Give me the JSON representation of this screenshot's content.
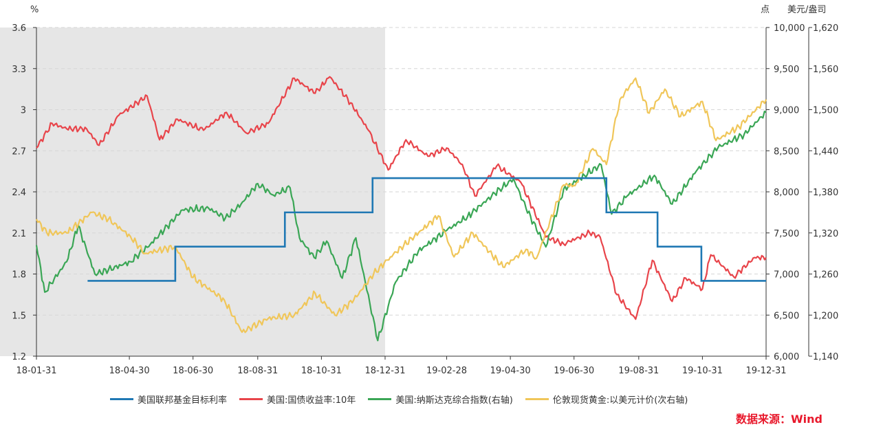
{
  "chart_data": {
    "type": "line",
    "left_axis_unit": "%",
    "right_axis_unit": "点",
    "right2_axis_unit": "美元/盎司",
    "left_axis": {
      "min": 1.2,
      "max": 3.6,
      "ticks": [
        1.2,
        1.5,
        1.8,
        2.1,
        2.4,
        2.7,
        3.0,
        3.3,
        3.6
      ],
      "tick_labels": [
        "1.2",
        "1.5",
        "1.8",
        "2.1",
        "2.4",
        "2.7",
        "3",
        "3.3",
        "3.6"
      ]
    },
    "right_axis": {
      "min": 6000,
      "max": 10000,
      "tick_labels": [
        "6,000",
        "6,500",
        "7,000",
        "7,500",
        "8,000",
        "8,500",
        "9,000",
        "9,500",
        "10,000"
      ]
    },
    "right2_axis": {
      "min": 1140,
      "max": 1620,
      "tick_labels": [
        "1,140",
        "1,200",
        "1,260",
        "1,320",
        "1,380",
        "1,440",
        "1,500",
        "1,560",
        "1,620"
      ]
    },
    "x_start": "2018-01-31",
    "x_end": "2019-12-31",
    "x_tick_dates": [
      "2018-01-31",
      "2018-04-30",
      "2018-06-30",
      "2018-08-31",
      "2018-10-31",
      "2018-12-31",
      "2019-02-28",
      "2019-04-30",
      "2019-06-30",
      "2019-08-31",
      "2019-10-31",
      "2019-12-31"
    ],
    "x_tick_labels": [
      "18-01-31",
      "18-04-30",
      "18-06-30",
      "18-08-31",
      "18-10-31",
      "18-12-31",
      "19-02-28",
      "19-04-30",
      "19-06-30",
      "19-08-31",
      "19-10-31",
      "19-12-31"
    ],
    "shaded_period": [
      "2018-01-31",
      "2018-12-31"
    ],
    "grid": true,
    "legend_position": "bottom",
    "series": [
      {
        "name": "美国联邦基金目标利率",
        "axis": "left",
        "color": "#1f78b4",
        "step": true,
        "points": [
          [
            "2018-03-21",
            1.75
          ],
          [
            "2018-06-13",
            2.0
          ],
          [
            "2018-09-26",
            2.25
          ],
          [
            "2018-12-19",
            2.5
          ],
          [
            "2019-07-31",
            2.25
          ],
          [
            "2019-09-18",
            2.0
          ],
          [
            "2019-10-30",
            1.75
          ],
          [
            "2019-12-31",
            1.75
          ]
        ]
      },
      {
        "name": "美国:国债收益率:10年",
        "axis": "left",
        "color": "#e8444a",
        "points": [
          [
            "2018-01-31",
            2.72
          ],
          [
            "2018-02-15",
            2.9
          ],
          [
            "2018-03-01",
            2.86
          ],
          [
            "2018-03-20",
            2.86
          ],
          [
            "2018-04-01",
            2.74
          ],
          [
            "2018-04-20",
            2.96
          ],
          [
            "2018-05-17",
            3.1
          ],
          [
            "2018-05-29",
            2.78
          ],
          [
            "2018-06-15",
            2.93
          ],
          [
            "2018-07-10",
            2.85
          ],
          [
            "2018-08-01",
            2.98
          ],
          [
            "2018-08-20",
            2.83
          ],
          [
            "2018-09-10",
            2.9
          ],
          [
            "2018-10-05",
            3.23
          ],
          [
            "2018-10-25",
            3.12
          ],
          [
            "2018-11-08",
            3.24
          ],
          [
            "2018-11-28",
            3.05
          ],
          [
            "2018-12-15",
            2.85
          ],
          [
            "2019-01-03",
            2.56
          ],
          [
            "2019-01-20",
            2.78
          ],
          [
            "2019-02-10",
            2.66
          ],
          [
            "2019-02-28",
            2.72
          ],
          [
            "2019-03-15",
            2.6
          ],
          [
            "2019-03-27",
            2.37
          ],
          [
            "2019-04-17",
            2.59
          ],
          [
            "2019-05-10",
            2.47
          ],
          [
            "2019-06-03",
            2.07
          ],
          [
            "2019-06-20",
            2.02
          ],
          [
            "2019-07-15",
            2.1
          ],
          [
            "2019-07-25",
            2.07
          ],
          [
            "2019-08-10",
            1.65
          ],
          [
            "2019-08-28",
            1.47
          ],
          [
            "2019-09-13",
            1.9
          ],
          [
            "2019-10-02",
            1.6
          ],
          [
            "2019-10-15",
            1.77
          ],
          [
            "2019-10-31",
            1.69
          ],
          [
            "2019-11-08",
            1.94
          ],
          [
            "2019-11-30",
            1.78
          ],
          [
            "2019-12-20",
            1.92
          ],
          [
            "2019-12-31",
            1.92
          ]
        ]
      },
      {
        "name": "美国:纳斯达克综合指数(右轴)",
        "axis": "right",
        "color": "#3aa655",
        "points": [
          [
            "2018-01-31",
            7350
          ],
          [
            "2018-02-08",
            6780
          ],
          [
            "2018-03-01",
            7150
          ],
          [
            "2018-03-12",
            7590
          ],
          [
            "2018-03-28",
            7000
          ],
          [
            "2018-04-10",
            7050
          ],
          [
            "2018-05-01",
            7150
          ],
          [
            "2018-05-20",
            7360
          ],
          [
            "2018-06-20",
            7780
          ],
          [
            "2018-07-15",
            7800
          ],
          [
            "2018-07-31",
            7680
          ],
          [
            "2018-08-15",
            7850
          ],
          [
            "2018-08-31",
            8100
          ],
          [
            "2018-09-15",
            7960
          ],
          [
            "2018-10-01",
            8050
          ],
          [
            "2018-10-10",
            7440
          ],
          [
            "2018-10-24",
            7200
          ],
          [
            "2018-11-05",
            7400
          ],
          [
            "2018-11-20",
            6950
          ],
          [
            "2018-12-03",
            7440
          ],
          [
            "2018-12-24",
            6190
          ],
          [
            "2019-01-10",
            6900
          ],
          [
            "2019-02-01",
            7280
          ],
          [
            "2019-02-28",
            7530
          ],
          [
            "2019-03-20",
            7700
          ],
          [
            "2019-04-15",
            7980
          ],
          [
            "2019-05-03",
            8160
          ],
          [
            "2019-05-15",
            7800
          ],
          [
            "2019-06-03",
            7330
          ],
          [
            "2019-06-20",
            8030
          ],
          [
            "2019-07-10",
            8200
          ],
          [
            "2019-07-26",
            8330
          ],
          [
            "2019-08-05",
            7730
          ],
          [
            "2019-08-20",
            7950
          ],
          [
            "2019-09-15",
            8200
          ],
          [
            "2019-10-02",
            7850
          ],
          [
            "2019-10-25",
            8250
          ],
          [
            "2019-11-15",
            8540
          ],
          [
            "2019-12-10",
            8700
          ],
          [
            "2019-12-31",
            8970
          ]
        ]
      },
      {
        "name": "伦敦现货黄金:以美元计价(次右轴)",
        "axis": "right2",
        "color": "#f0c659",
        "points": [
          [
            "2018-01-31",
            1340
          ],
          [
            "2018-02-10",
            1320
          ],
          [
            "2018-03-01",
            1320
          ],
          [
            "2018-03-25",
            1350
          ],
          [
            "2018-04-10",
            1340
          ],
          [
            "2018-05-01",
            1315
          ],
          [
            "2018-05-15",
            1290
          ],
          [
            "2018-06-13",
            1300
          ],
          [
            "2018-06-30",
            1255
          ],
          [
            "2018-07-30",
            1222
          ],
          [
            "2018-08-16",
            1175
          ],
          [
            "2018-09-10",
            1195
          ],
          [
            "2018-10-05",
            1200
          ],
          [
            "2018-10-25",
            1232
          ],
          [
            "2018-11-13",
            1200
          ],
          [
            "2018-12-01",
            1222
          ],
          [
            "2018-12-20",
            1260
          ],
          [
            "2019-01-05",
            1285
          ],
          [
            "2019-02-20",
            1345
          ],
          [
            "2019-03-07",
            1285
          ],
          [
            "2019-03-25",
            1320
          ],
          [
            "2019-04-23",
            1270
          ],
          [
            "2019-05-15",
            1296
          ],
          [
            "2019-05-25",
            1283
          ],
          [
            "2019-06-20",
            1390
          ],
          [
            "2019-07-01",
            1389
          ],
          [
            "2019-07-18",
            1443
          ],
          [
            "2019-07-31",
            1420
          ],
          [
            "2019-08-13",
            1515
          ],
          [
            "2019-08-28",
            1546
          ],
          [
            "2019-09-10",
            1495
          ],
          [
            "2019-09-25",
            1530
          ],
          [
            "2019-10-10",
            1490
          ],
          [
            "2019-10-31",
            1512
          ],
          [
            "2019-11-13",
            1455
          ],
          [
            "2019-12-05",
            1475
          ],
          [
            "2019-12-31",
            1515
          ]
        ]
      }
    ]
  },
  "source_note": "数据来源：Wind"
}
